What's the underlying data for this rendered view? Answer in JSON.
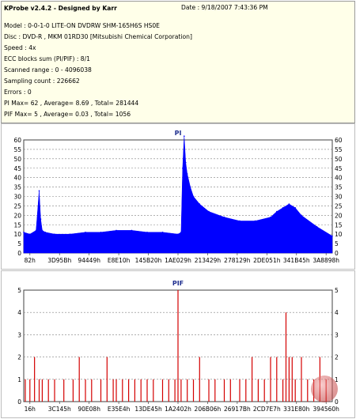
{
  "info": {
    "title": "KProbe v2.4.2 - Designed by Karr",
    "date": "Date : 9/18/2007 7:43:36 PM",
    "lines": [
      "Model : 0-0-1-0 LITE-ON DVDRW SHM-165H6S HS0E",
      "Disc : DVD-R , MKM 01RD30  [Mitsubishi Chemical Corporation]",
      "Speed : 4x",
      "ECC blocks sum (PI/PIF) : 8/1",
      "Scanned range : 0 - 4096038",
      "Sampling count : 226662",
      "Errors : 0",
      "PI Max= 62 , Average= 8.69 , Total= 281444",
      "PIF Max= 5 , Average= 0.03 , Total= 1056"
    ]
  },
  "chart_data": [
    {
      "type": "area",
      "title": "PI",
      "color": "#0000ff",
      "ylim": [
        0,
        60
      ],
      "yticks": [
        0,
        5,
        10,
        15,
        20,
        25,
        30,
        35,
        40,
        45,
        50,
        55,
        60
      ],
      "xticks": [
        "82h",
        "3D95Bh",
        "94449h",
        "E8E10h",
        "145B20h",
        "1AE029h",
        "213429h",
        "278129h",
        "2DE051h",
        "341B45h",
        "3A8898h"
      ],
      "x": [
        0,
        0.02,
        0.04,
        0.05,
        0.055,
        0.06,
        0.07,
        0.1,
        0.15,
        0.2,
        0.25,
        0.3,
        0.35,
        0.4,
        0.45,
        0.5,
        0.51,
        0.515,
        0.52,
        0.525,
        0.53,
        0.54,
        0.55,
        0.57,
        0.6,
        0.65,
        0.7,
        0.75,
        0.8,
        0.82,
        0.84,
        0.86,
        0.88,
        0.9,
        0.95,
        1.0
      ],
      "values": [
        11,
        10,
        12,
        33,
        18,
        12,
        11,
        10,
        10,
        11,
        11,
        12,
        12,
        11,
        11,
        10,
        11,
        45,
        62,
        48,
        42,
        35,
        30,
        26,
        22,
        19,
        17,
        17,
        19,
        22,
        24,
        26,
        24,
        20,
        14,
        9
      ]
    },
    {
      "type": "bar",
      "title": "PIF",
      "color": "#d40000",
      "ylim": [
        0,
        5
      ],
      "yticks": [
        0,
        1,
        2,
        3,
        4,
        5
      ],
      "xticks": [
        "16h",
        "3C145h",
        "90E08h",
        "E35E4h",
        "13DE45h",
        "1A2402h",
        "206B06h",
        "26917Bh",
        "2CD7E7h",
        "331E80h",
        "394560h"
      ],
      "x": [
        0.005,
        0.02,
        0.035,
        0.05,
        0.06,
        0.08,
        0.1,
        0.13,
        0.16,
        0.18,
        0.2,
        0.22,
        0.25,
        0.27,
        0.29,
        0.3,
        0.32,
        0.34,
        0.36,
        0.38,
        0.4,
        0.42,
        0.45,
        0.47,
        0.49,
        0.5,
        0.51,
        0.53,
        0.55,
        0.57,
        0.6,
        0.62,
        0.65,
        0.67,
        0.7,
        0.72,
        0.74,
        0.76,
        0.78,
        0.8,
        0.82,
        0.84,
        0.85,
        0.86,
        0.87,
        0.88,
        0.9,
        0.92,
        0.94,
        0.96,
        0.98
      ],
      "values": [
        1,
        1,
        2,
        1,
        1,
        1,
        1,
        1,
        1,
        2,
        1,
        1,
        1,
        2,
        1,
        1,
        1,
        1,
        1,
        1,
        1,
        1,
        1,
        1,
        1,
        5,
        1,
        1,
        1,
        2,
        1,
        1,
        1,
        1,
        1,
        1,
        2,
        1,
        1,
        2,
        2,
        1,
        4,
        2,
        2,
        1,
        2,
        1,
        1,
        2,
        1
      ]
    }
  ]
}
